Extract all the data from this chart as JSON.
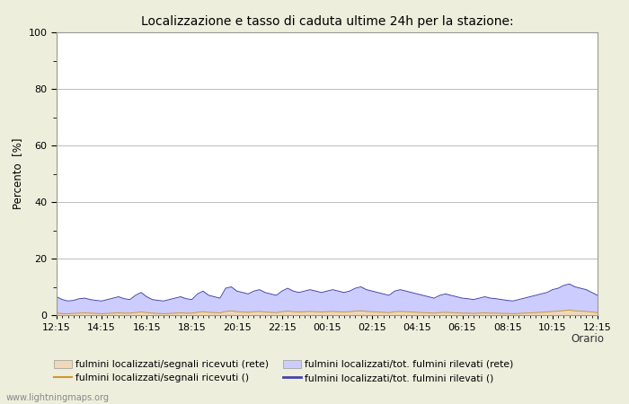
{
  "title": "Localizzazione e tasso di caduta ultime 24h per la stazione:",
  "ylabel": "Percento  [%]",
  "xlabel": "Orario",
  "ylim": [
    0,
    100
  ],
  "yticks": [
    0,
    20,
    40,
    60,
    80,
    100
  ],
  "yminor_ticks": [
    10,
    30,
    50,
    70,
    90
  ],
  "xtick_labels": [
    "12:15",
    "14:15",
    "16:15",
    "18:15",
    "20:15",
    "22:15",
    "00:15",
    "02:15",
    "04:15",
    "06:15",
    "08:15",
    "10:15",
    "12:15"
  ],
  "background_color": "#eeeedd",
  "plot_bg_color": "#ffffff",
  "grid_color": "#bbbbbb",
  "fill_color_blue": "#ccccff",
  "fill_color_peach": "#f0d8b8",
  "line_color_blue": "#4444aa",
  "line_color_orange": "#cc9933",
  "watermark": "www.lightningmaps.org",
  "legend": [
    "fulmini localizzati/segnali ricevuti (rete)",
    "fulmini localizzati/segnali ricevuti ()",
    "fulmini localizzati/tot. fulmini rilevati (rete)",
    "fulmini localizzati/tot. fulmini rilevati ()"
  ],
  "n_points": 97,
  "blue_area_data": [
    6.5,
    5.5,
    5.0,
    5.2,
    5.8,
    6.0,
    5.5,
    5.2,
    5.0,
    5.5,
    6.0,
    6.5,
    5.8,
    5.5,
    7.0,
    8.0,
    6.5,
    5.5,
    5.2,
    5.0,
    5.5,
    6.0,
    6.5,
    5.8,
    5.5,
    7.5,
    8.5,
    7.0,
    6.5,
    6.0,
    9.5,
    10.0,
    8.5,
    8.0,
    7.5,
    8.5,
    9.0,
    8.0,
    7.5,
    7.0,
    8.5,
    9.5,
    8.5,
    8.0,
    8.5,
    9.0,
    8.5,
    8.0,
    8.5,
    9.0,
    8.5,
    8.0,
    8.5,
    9.5,
    10.0,
    9.0,
    8.5,
    8.0,
    7.5,
    7.0,
    8.5,
    9.0,
    8.5,
    8.0,
    7.5,
    7.0,
    6.5,
    6.0,
    7.0,
    7.5,
    7.0,
    6.5,
    6.0,
    5.8,
    5.5,
    6.0,
    6.5,
    6.0,
    5.8,
    5.5,
    5.2,
    5.0,
    5.5,
    6.0,
    6.5,
    7.0,
    7.5,
    8.0,
    9.0,
    9.5,
    10.5,
    11.0,
    10.0,
    9.5,
    9.0,
    8.0,
    7.0
  ],
  "peach_area_data": [
    0.8,
    0.5,
    0.5,
    0.6,
    0.7,
    0.8,
    0.7,
    0.6,
    0.5,
    0.6,
    0.7,
    0.8,
    0.7,
    0.7,
    0.9,
    1.1,
    0.9,
    0.7,
    0.6,
    0.5,
    0.6,
    0.7,
    0.8,
    0.7,
    0.7,
    1.0,
    1.2,
    1.0,
    0.9,
    0.8,
    1.3,
    1.5,
    1.2,
    1.1,
    1.0,
    1.2,
    1.3,
    1.1,
    1.0,
    0.9,
    1.2,
    1.4,
    1.2,
    1.1,
    1.2,
    1.3,
    1.2,
    1.1,
    1.2,
    1.3,
    1.2,
    1.1,
    1.2,
    1.4,
    1.5,
    1.3,
    1.2,
    1.1,
    1.0,
    0.9,
    1.2,
    1.3,
    1.2,
    1.1,
    1.0,
    0.9,
    0.8,
    0.7,
    0.9,
    1.0,
    0.9,
    0.8,
    0.7,
    0.7,
    0.6,
    0.7,
    0.8,
    0.7,
    0.7,
    0.6,
    0.6,
    0.5,
    0.6,
    0.7,
    0.8,
    0.9,
    1.0,
    1.1,
    1.3,
    1.4,
    1.6,
    1.8,
    1.5,
    1.4,
    1.3,
    1.1,
    0.9
  ]
}
